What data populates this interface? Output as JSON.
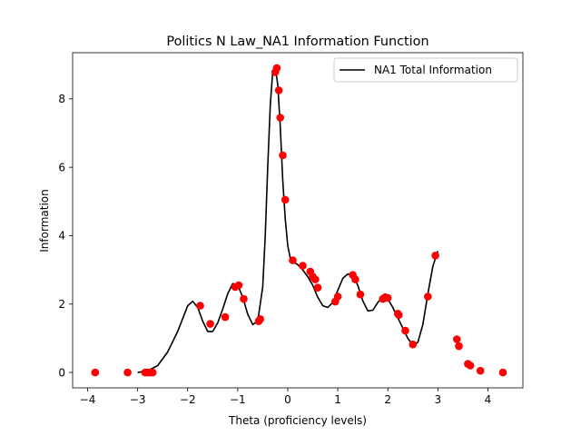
{
  "chart_data": {
    "type": "line+scatter",
    "title": "Politics N Law_NA1 Information Function",
    "xlabel": "Theta (proficiency levels)",
    "ylabel": "Information",
    "xlim": [
      -4.3,
      4.7
    ],
    "ylim": [
      -0.45,
      9.35
    ],
    "xticks": [
      -4,
      -3,
      -2,
      -1,
      0,
      1,
      2,
      3,
      4
    ],
    "yticks": [
      0,
      2,
      4,
      6,
      8
    ],
    "legend_position": "top-right",
    "grid": false,
    "series": [
      {
        "name": "NA1 Total Information",
        "kind": "line",
        "color": "#000000",
        "x": [
          -3.0,
          -2.8,
          -2.6,
          -2.4,
          -2.2,
          -2.0,
          -1.9,
          -1.8,
          -1.7,
          -1.6,
          -1.5,
          -1.4,
          -1.3,
          -1.2,
          -1.1,
          -1.0,
          -0.9,
          -0.8,
          -0.7,
          -0.6,
          -0.5,
          -0.45,
          -0.4,
          -0.35,
          -0.3,
          -0.25,
          -0.2,
          -0.15,
          -0.1,
          -0.05,
          0.0,
          0.05,
          0.1,
          0.2,
          0.3,
          0.4,
          0.5,
          0.6,
          0.7,
          0.8,
          0.9,
          1.0,
          1.1,
          1.2,
          1.3,
          1.4,
          1.5,
          1.6,
          1.7,
          1.8,
          1.9,
          2.0,
          2.1,
          2.2,
          2.3,
          2.4,
          2.5,
          2.6,
          2.7,
          2.8,
          2.9,
          3.0
        ],
        "y": [
          0.0,
          0.05,
          0.2,
          0.6,
          1.2,
          1.95,
          2.08,
          1.9,
          1.5,
          1.2,
          1.2,
          1.45,
          1.85,
          2.3,
          2.6,
          2.55,
          2.2,
          1.7,
          1.4,
          1.5,
          2.5,
          4.0,
          6.0,
          7.8,
          8.8,
          8.95,
          8.4,
          7.2,
          5.6,
          4.5,
          3.7,
          3.35,
          3.25,
          3.15,
          3.0,
          2.8,
          2.55,
          2.2,
          1.95,
          1.9,
          2.05,
          2.4,
          2.75,
          2.88,
          2.85,
          2.55,
          2.1,
          1.8,
          1.82,
          2.05,
          2.2,
          2.15,
          1.9,
          1.6,
          1.3,
          1.0,
          0.8,
          0.88,
          1.4,
          2.3,
          3.1,
          3.55
        ]
      },
      {
        "name": "",
        "kind": "scatter",
        "color": "#ff0000",
        "x": [
          -3.85,
          -3.2,
          -2.85,
          -2.8,
          -2.75,
          -2.7,
          -1.75,
          -1.55,
          -1.25,
          -1.05,
          -0.98,
          -0.88,
          -0.58,
          -0.55,
          -0.25,
          -0.22,
          -0.18,
          -0.15,
          -0.1,
          -0.05,
          0.1,
          0.3,
          0.45,
          0.5,
          0.55,
          0.6,
          0.95,
          1.0,
          1.3,
          1.35,
          1.45,
          1.9,
          1.95,
          2.0,
          2.2,
          2.22,
          2.35,
          2.5,
          2.8,
          2.95,
          3.38,
          3.42,
          3.6,
          3.65,
          3.85,
          4.3
        ],
        "y": [
          0.0,
          0.0,
          0.0,
          0.0,
          0.0,
          0.0,
          1.95,
          1.42,
          1.62,
          2.5,
          2.55,
          2.15,
          1.5,
          1.56,
          8.78,
          8.9,
          8.25,
          7.45,
          6.35,
          5.05,
          3.28,
          3.12,
          2.95,
          2.8,
          2.72,
          2.48,
          2.07,
          2.22,
          2.85,
          2.72,
          2.28,
          2.15,
          2.2,
          2.18,
          1.72,
          1.68,
          1.22,
          0.82,
          2.22,
          3.42,
          0.97,
          0.77,
          0.25,
          0.2,
          0.05,
          0.0
        ]
      }
    ]
  }
}
